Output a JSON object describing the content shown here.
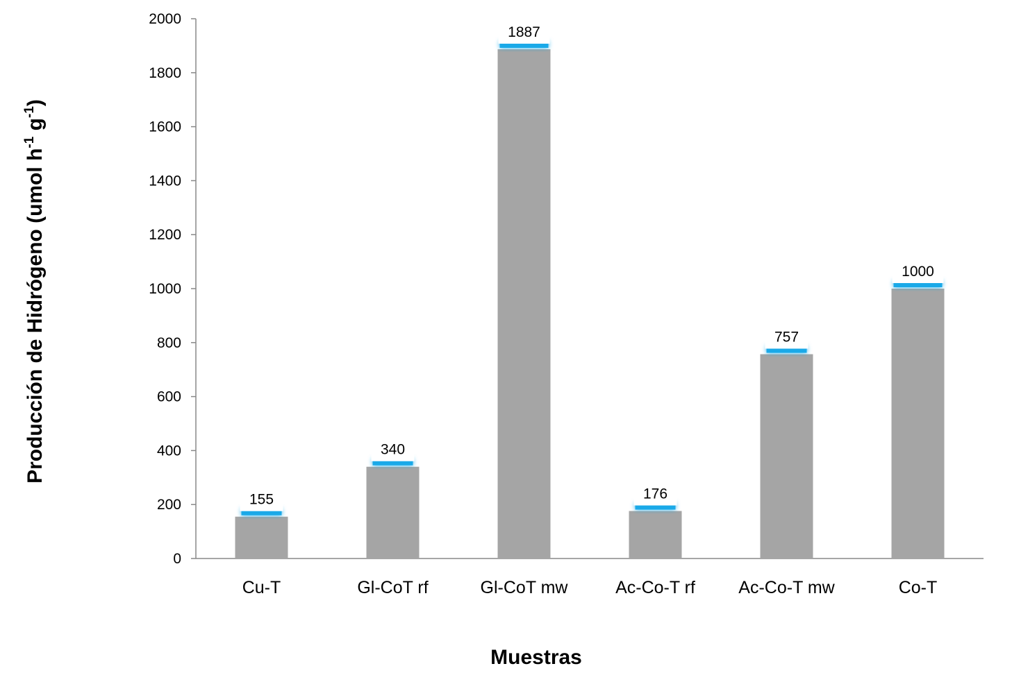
{
  "chart_data": {
    "type": "bar",
    "categories": [
      "Cu-T",
      "Gl-CoT rf",
      "Gl-CoT mw",
      "Ac-Co-T rf",
      "Ac-Co-T mw",
      "Co-T"
    ],
    "values": [
      155,
      340,
      1887,
      176,
      757,
      1000
    ],
    "data_labels": [
      "155",
      "340",
      "1887",
      "176",
      "757",
      "1000"
    ],
    "xlabel": "Muestras",
    "ylabel": {
      "text_before": "Producción de Hidrógeno (umol h",
      "sup1": "-1",
      "text_middle": " g",
      "sup2": "-1",
      "text_after": ")"
    },
    "ylim": [
      0,
      2000
    ],
    "yticks": [
      "0",
      "200",
      "400",
      "600",
      "800",
      "1000",
      "1200",
      "1400",
      "1600",
      "1800",
      "2000"
    ],
    "grid": false,
    "legend": "none",
    "colors": {
      "bar": "#a5a5a5",
      "label_glow": "#1aa9e8",
      "axis": "#888888"
    }
  }
}
